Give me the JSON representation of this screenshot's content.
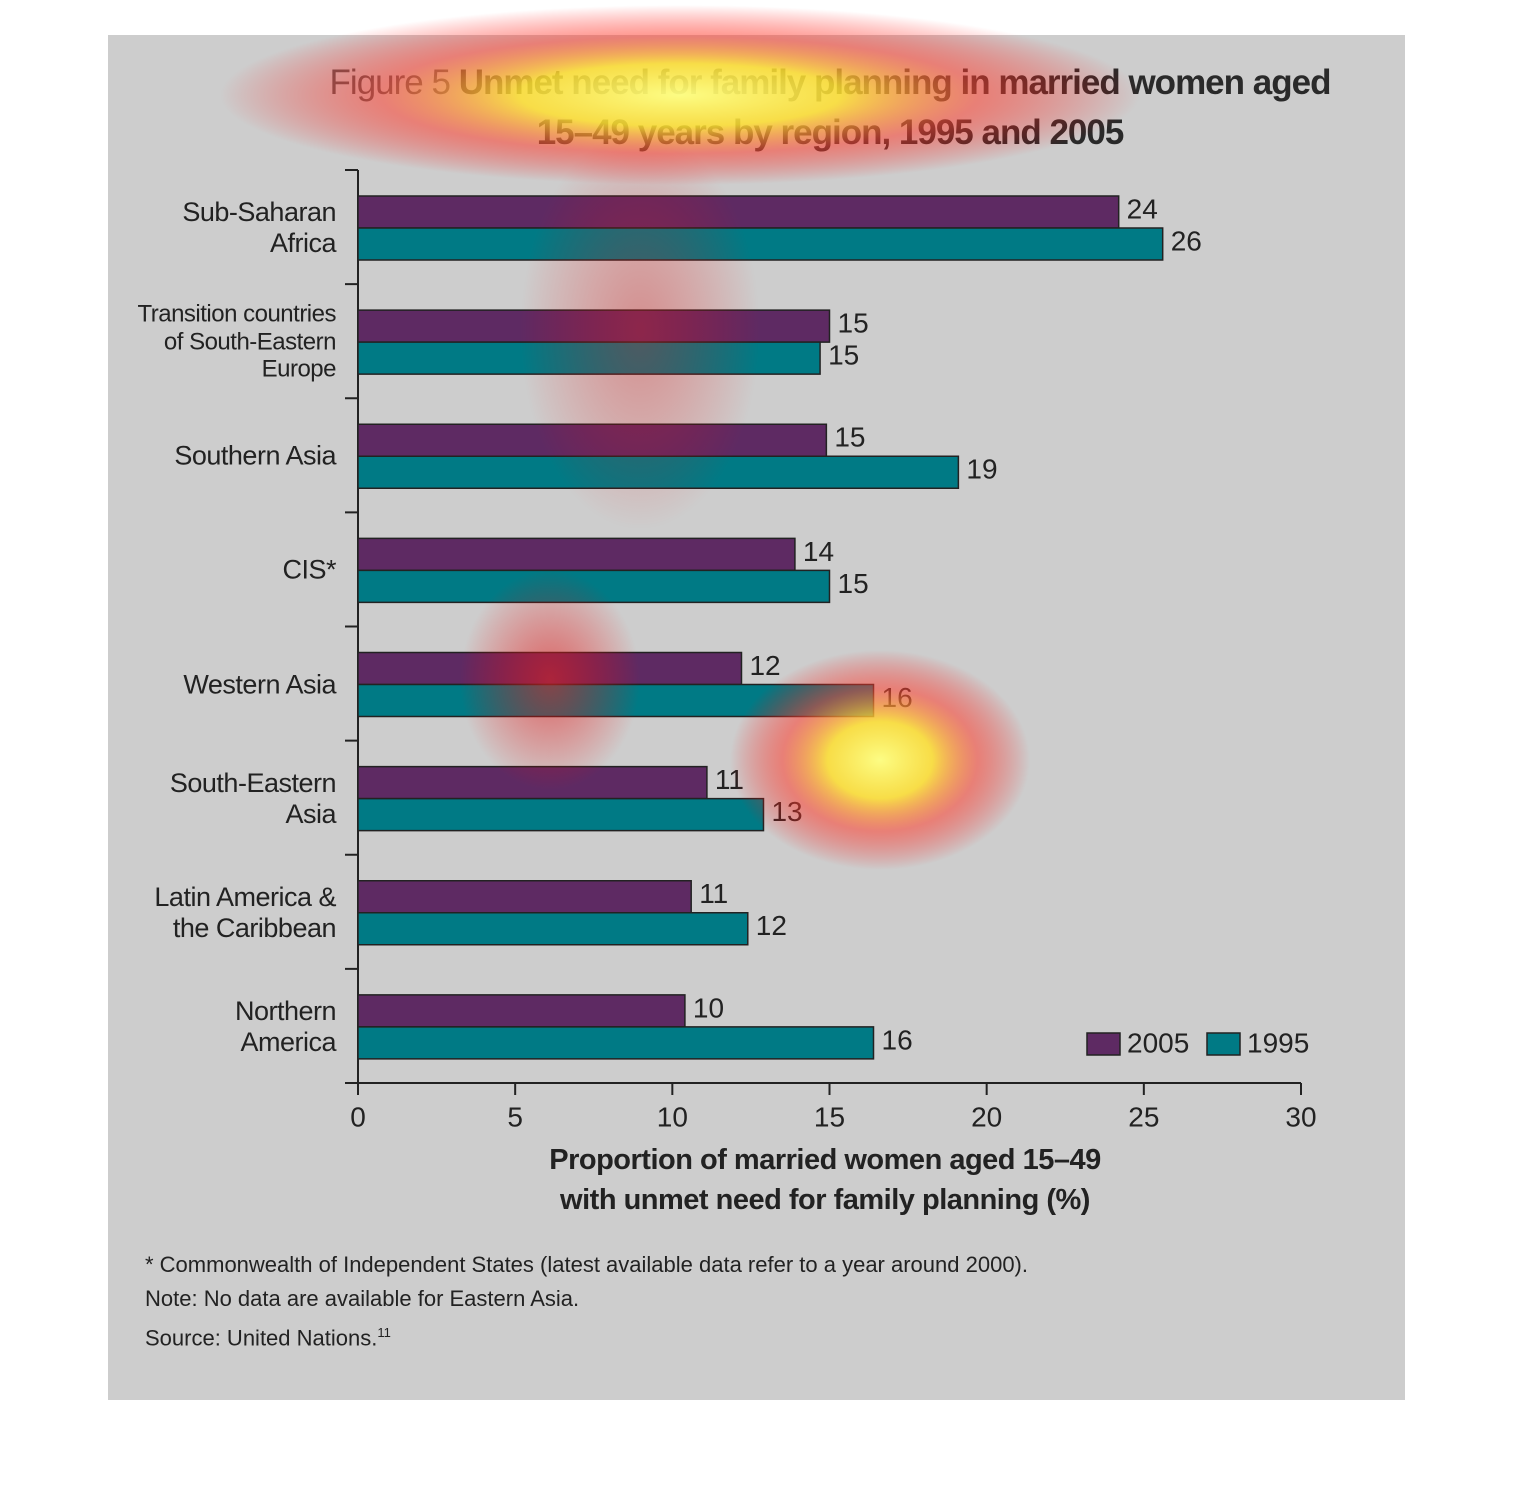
{
  "chart_data": {
    "type": "bar",
    "orientation": "horizontal",
    "figure_label": "Figure 5",
    "title": "Unmet need for family planning in married women aged 15–49 years by region, 1995 and 2005",
    "categories": [
      "Sub-Saharan\nAfrica",
      "Transition countries\nof South-Eastern\nEurope",
      "Southern Asia",
      "CIS*",
      "Western Asia",
      "South-Eastern\nAsia",
      "Latin America &\nthe Caribbean",
      "Northern\nAmerica"
    ],
    "series": [
      {
        "name": "2005",
        "color": "#5e2a63",
        "values": [
          24.2,
          15.0,
          14.9,
          13.9,
          12.2,
          11.1,
          10.6,
          10.4
        ],
        "value_labels": [
          "24",
          "15",
          "15",
          "14",
          "12",
          "11",
          "11",
          "10"
        ]
      },
      {
        "name": "1995",
        "color": "#007a85",
        "values": [
          25.6,
          14.7,
          19.1,
          15.0,
          16.4,
          12.9,
          12.4,
          16.4
        ],
        "value_labels": [
          "26",
          "15",
          "19",
          "15",
          "16",
          "13",
          "12",
          "16"
        ]
      }
    ],
    "xlim": [
      0,
      30
    ],
    "xticks": [
      0,
      5,
      10,
      15,
      20,
      25,
      30
    ],
    "xlabel": "Proportion of married women aged 15–49\nwith unmet need for family planning (%)",
    "legend": "lower right",
    "footnotes": [
      "* Commonwealth of Independent States (latest available data refer to a year around 2000).",
      "Note: No data are available for Eastern Asia.",
      "Source: United Nations."
    ],
    "source_ref": "11"
  }
}
